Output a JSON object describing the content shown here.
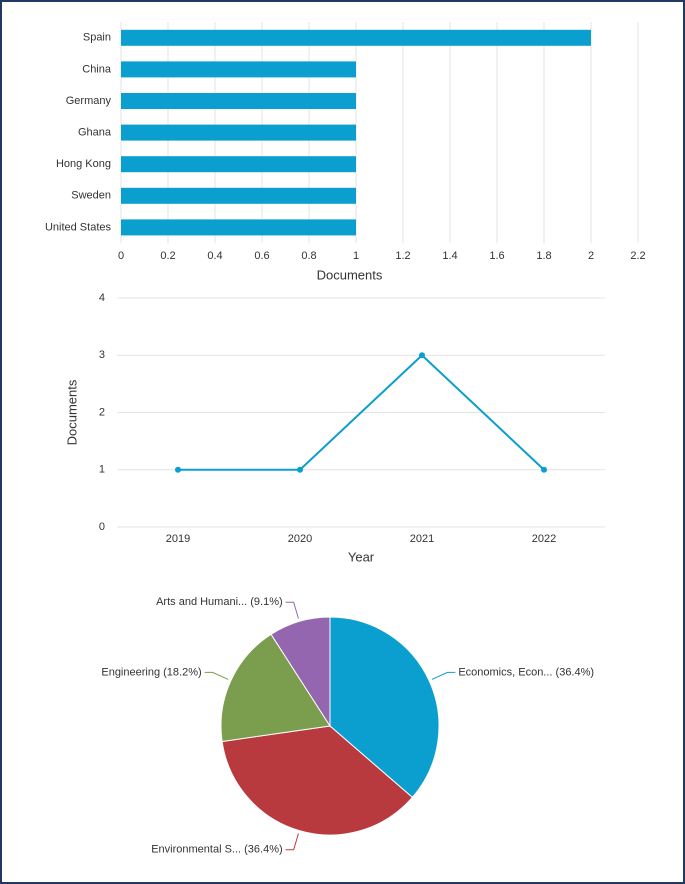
{
  "chart_data": [
    {
      "type": "hbar",
      "categories": [
        "Spain",
        "China",
        "Germany",
        "Ghana",
        "Hong Kong",
        "Sweden",
        "United States"
      ],
      "values": [
        2,
        1,
        1,
        1,
        1,
        1,
        1
      ],
      "color": "#0a9fce",
      "x_label": "Documents",
      "xlim": [
        0,
        2.2
      ],
      "xticks": [
        0,
        0.2,
        0.4,
        0.6,
        0.8,
        1,
        1.2,
        1.4,
        1.6,
        1.8,
        2,
        2.2
      ],
      "grid": true
    },
    {
      "type": "line",
      "categories": [
        "2019",
        "2020",
        "2021",
        "2022"
      ],
      "values": [
        1,
        1,
        3,
        1
      ],
      "color": "#0a9fce",
      "x_label": "Year",
      "y_label": "Documents",
      "ylim": [
        0,
        4
      ],
      "yticks": [
        0,
        1,
        2,
        3,
        4
      ],
      "grid": true
    },
    {
      "type": "pie",
      "categories": [
        "Economics, Econ... (36.4%)",
        "Environmental S... (36.4%)",
        "Engineering (18.2%)",
        "Arts and Humani... (9.1%)"
      ],
      "values": [
        36.4,
        36.4,
        18.2,
        9.1
      ],
      "colors": [
        "#0a9fce",
        "#b83a3e",
        "#7a9e4e",
        "#9466b0"
      ]
    }
  ]
}
